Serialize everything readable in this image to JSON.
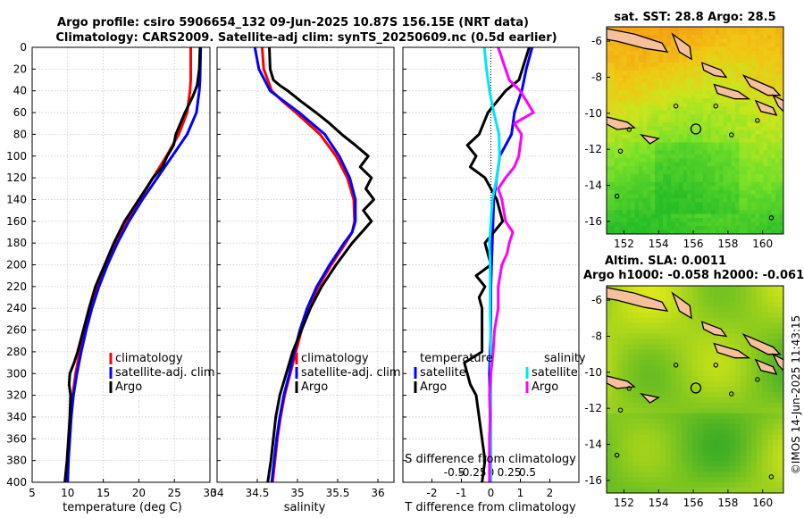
{
  "title_line1": "Argo profile: csiro 5906654_132 09-Jun-2025 10.87S 156.15E (NRT data)",
  "title_line2": "Climatology: CARS2009. Satellite-adj clim: synTS_20250609.nc (0.5d earlier)",
  "colors": {
    "climatology": "#ff0000",
    "satellite": "#0000ff",
    "argo": "#000000",
    "sat_salinity": "#00e5ff",
    "argo_salinity": "#ff00ff",
    "land": "#f5c09a"
  },
  "depth_ticks": [
    "0",
    "20",
    "40",
    "60",
    "80",
    "100",
    "120",
    "140",
    "160",
    "180",
    "200",
    "220",
    "240",
    "260",
    "280",
    "300",
    "320",
    "340",
    "360",
    "380",
    "400"
  ],
  "chart_data": [
    {
      "type": "line",
      "name": "temperature",
      "xlabel": "temperature (deg C)",
      "xlim": [
        5,
        30
      ],
      "ylim": [
        0,
        400
      ],
      "xticks": [
        "5",
        "10",
        "15",
        "20",
        "25",
        "30"
      ],
      "legend": [
        "climatology",
        "satellite-adj. clim",
        "Argo"
      ],
      "series": [
        {
          "name": "climatology",
          "depth": [
            0,
            30,
            40,
            60,
            80,
            100,
            120,
            140,
            160,
            180,
            200,
            220,
            240,
            260,
            280,
            300,
            320,
            340,
            360,
            380,
            400
          ],
          "values": [
            27.3,
            27.3,
            27.2,
            26.8,
            25.6,
            23.9,
            22.0,
            20.1,
            18.3,
            16.8,
            15.4,
            14.2,
            13.2,
            12.4,
            11.7,
            11.1,
            10.7,
            10.4,
            10.2,
            10.0,
            9.9
          ]
        },
        {
          "name": "satellite-adj. clim",
          "depth": [
            0,
            30,
            40,
            60,
            80,
            100,
            120,
            140,
            160,
            180,
            200,
            220,
            240,
            260,
            280,
            300,
            320,
            340,
            360,
            380,
            400
          ],
          "values": [
            28.7,
            28.6,
            28.5,
            28.1,
            26.8,
            24.7,
            22.6,
            20.5,
            18.6,
            17.0,
            15.6,
            14.4,
            13.4,
            12.6,
            11.9,
            11.3,
            10.8,
            10.5,
            10.3,
            10.1,
            10.0
          ]
        },
        {
          "name": "Argo",
          "depth": [
            0,
            20,
            35,
            45,
            60,
            80,
            90,
            100,
            110,
            120,
            130,
            140,
            160,
            180,
            200,
            220,
            240,
            260,
            280,
            290,
            300,
            310,
            320,
            340,
            360,
            380,
            400
          ],
          "values": [
            28.6,
            28.5,
            28.2,
            27.6,
            26.5,
            25.2,
            24.9,
            24.0,
            23.3,
            22.0,
            21.0,
            20.0,
            18.0,
            16.5,
            15.2,
            13.9,
            13.0,
            12.2,
            11.4,
            10.9,
            10.3,
            10.2,
            10.4,
            10.3,
            10.1,
            9.9,
            9.6
          ]
        }
      ]
    },
    {
      "type": "line",
      "name": "salinity",
      "xlabel": "salinity",
      "xlim": [
        34,
        36.2
      ],
      "ylim": [
        0,
        400
      ],
      "xticks": [
        "34",
        "34.5",
        "35",
        "35.5",
        "36"
      ],
      "legend": [
        "climatology",
        "satellite-adj. clim",
        "Argo"
      ],
      "series": [
        {
          "name": "climatology",
          "depth": [
            0,
            20,
            40,
            50,
            60,
            80,
            100,
            120,
            140,
            160,
            170,
            180,
            200,
            220,
            240,
            260,
            280,
            300,
            320,
            340,
            360,
            380,
            400
          ],
          "values": [
            34.56,
            34.58,
            34.68,
            34.82,
            34.98,
            35.28,
            35.48,
            35.62,
            35.7,
            35.71,
            35.68,
            35.6,
            35.42,
            35.26,
            35.14,
            35.05,
            34.98,
            34.91,
            34.84,
            34.79,
            34.75,
            34.72,
            34.69
          ]
        },
        {
          "name": "satellite-adj. clim",
          "depth": [
            0,
            20,
            40,
            50,
            60,
            80,
            100,
            120,
            140,
            160,
            170,
            180,
            200,
            220,
            240,
            260,
            280,
            300,
            320,
            340,
            360,
            380,
            400
          ],
          "values": [
            34.47,
            34.52,
            34.66,
            34.84,
            35.02,
            35.34,
            35.52,
            35.65,
            35.72,
            35.72,
            35.68,
            35.58,
            35.4,
            35.24,
            35.12,
            35.03,
            34.96,
            34.9,
            34.83,
            34.78,
            34.74,
            34.71,
            34.68
          ]
        },
        {
          "name": "Argo",
          "depth": [
            0,
            20,
            30,
            35,
            40,
            50,
            60,
            70,
            80,
            90,
            100,
            110,
            120,
            130,
            140,
            150,
            160,
            170,
            180,
            200,
            220,
            240,
            260,
            280,
            300,
            320,
            340,
            360,
            380,
            400
          ],
          "values": [
            34.65,
            34.66,
            34.7,
            34.78,
            34.88,
            35.05,
            35.23,
            35.4,
            35.55,
            35.72,
            35.88,
            35.78,
            35.92,
            35.85,
            35.95,
            35.82,
            35.92,
            35.8,
            35.68,
            35.48,
            35.3,
            35.16,
            35.05,
            34.94,
            34.86,
            34.78,
            34.73,
            34.7,
            34.67,
            34.63
          ]
        }
      ]
    },
    {
      "type": "line",
      "name": "difference",
      "xlabel": "T difference from climatology",
      "xlabel_top": "S difference from climatology",
      "xlim": [
        -3,
        3
      ],
      "ylim": [
        0,
        400
      ],
      "xticks": [
        "-2",
        "-1",
        "0",
        "1",
        "2"
      ],
      "xticks_top": [
        "-0.5",
        "-0.25",
        "0",
        "0.25",
        "0.5"
      ],
      "legend": [
        "temperature",
        "satellite",
        "Argo",
        "salinity",
        "satellite",
        "Argo"
      ],
      "series": [
        {
          "name": "temperature satellite",
          "depth": [
            0,
            20,
            40,
            60,
            80,
            100,
            140,
            180,
            220,
            260,
            300,
            340,
            380,
            400
          ],
          "values": [
            1.4,
            1.2,
            1.05,
            0.8,
            0.7,
            0.3,
            0.1,
            0.05,
            0.0,
            0.0,
            -0.05,
            -0.02,
            -0.02,
            -0.02
          ]
        },
        {
          "name": "temperature Argo",
          "depth": [
            0,
            30,
            40,
            60,
            80,
            90,
            100,
            110,
            120,
            140,
            160,
            180,
            200,
            210,
            220,
            230,
            240,
            260,
            280,
            290,
            300,
            310,
            320,
            340,
            360,
            380,
            400
          ],
          "values": [
            1.3,
            0.95,
            0.5,
            -0.1,
            -0.4,
            -0.8,
            -0.5,
            -0.7,
            -0.2,
            0.2,
            0.4,
            -0.2,
            0.0,
            -0.5,
            -0.2,
            -0.4,
            -0.3,
            -0.3,
            -0.3,
            -0.9,
            -0.8,
            -0.7,
            -0.5,
            -0.4,
            -0.3,
            -0.2,
            -0.3
          ]
        },
        {
          "name": "salinity satellite",
          "depth": [
            0,
            20,
            40,
            60,
            80,
            100,
            120,
            140,
            160,
            180,
            200,
            240,
            280,
            320,
            360,
            400
          ],
          "values": [
            -0.09,
            -0.06,
            -0.02,
            0.04,
            0.11,
            0.12,
            0.08,
            0.02,
            0.0,
            -0.02,
            -0.01,
            -0.01,
            0.0,
            0.0,
            0.0,
            0.0
          ]
        },
        {
          "name": "salinity Argo",
          "depth": [
            0,
            30,
            40,
            60,
            70,
            80,
            90,
            100,
            110,
            120,
            130,
            140,
            160,
            170,
            180,
            190,
            200,
            220,
            240,
            260,
            280,
            300,
            320,
            340,
            360,
            380,
            400
          ],
          "values": [
            0.1,
            0.25,
            0.4,
            0.58,
            0.32,
            0.42,
            0.4,
            0.38,
            0.32,
            0.2,
            0.1,
            0.15,
            0.2,
            0.3,
            0.25,
            0.22,
            0.15,
            0.1,
            0.1,
            0.05,
            0.03,
            0.0,
            -0.02,
            -0.01,
            -0.02,
            -0.02,
            -0.02
          ]
        }
      ]
    },
    {
      "type": "heatmap",
      "name": "sat-sst-map",
      "title": "sat. SST: 28.8  Argo: 28.5",
      "xticks": [
        "152",
        "154",
        "156",
        "158",
        "160"
      ],
      "yticks": [
        "-6",
        "-8",
        "-10",
        "-12",
        "-14",
        "-16"
      ],
      "xlim": [
        151,
        161.2
      ],
      "ylim": [
        -16.7,
        -5.2
      ],
      "argo_position": [
        156.15,
        -10.87
      ]
    },
    {
      "type": "heatmap",
      "name": "altim-sla-map",
      "title_line1": "Altim. SLA: 0.0011",
      "title_line2": "Argo h1000: -0.058 h2000: -0.061",
      "xticks": [
        "152",
        "154",
        "156",
        "158",
        "160"
      ],
      "yticks": [
        "-6",
        "-8",
        "-10",
        "-12",
        "-14",
        "-16"
      ],
      "xlim": [
        151,
        161.2
      ],
      "ylim": [
        -16.7,
        -5.2
      ],
      "argo_position": [
        156.15,
        -10.87
      ]
    }
  ],
  "timestamp": "©IMOS 14-Jun-2025 11:43:15"
}
